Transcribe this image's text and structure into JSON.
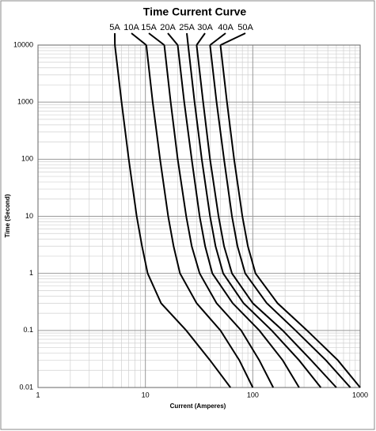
{
  "chart_data": {
    "type": "line",
    "title": "Time Current Curve",
    "xlabel": "Current (Amperes)",
    "ylabel": "Time (Second)",
    "xscale": "log",
    "yscale": "log",
    "grid": true,
    "xlim": [
      1,
      1000
    ],
    "ylim": [
      0.01,
      10000
    ],
    "xticks": [
      1,
      10,
      100,
      1000
    ],
    "yticks": [
      0.01,
      0.1,
      1,
      10,
      100,
      1000,
      10000
    ],
    "series": [
      {
        "name": "5A",
        "color": "#000000",
        "x": [
          5.2,
          6,
          7,
          8.3,
          9.3,
          10.5,
          14,
          24,
          40,
          62
        ],
        "values": [
          10000,
          1000,
          100,
          10,
          3,
          1,
          0.3,
          0.1,
          0.03,
          0.01
        ]
      },
      {
        "name": "10A",
        "color": "#000000",
        "x": [
          10.2,
          11.7,
          13.7,
          16.3,
          18.3,
          21,
          30,
          50,
          75,
          100
        ],
        "values": [
          10000,
          1000,
          100,
          10,
          3,
          1,
          0.3,
          0.1,
          0.03,
          0.01
        ]
      },
      {
        "name": "15A",
        "color": "#000000",
        "x": [
          15,
          17.2,
          20,
          24,
          27,
          32,
          46,
          78,
          115,
          155
        ],
        "values": [
          10000,
          1000,
          100,
          10,
          3,
          1,
          0.3,
          0.1,
          0.03,
          0.01
        ]
      },
      {
        "name": "20A",
        "color": "#000000",
        "x": [
          20,
          23,
          27,
          32,
          36,
          42,
          65,
          115,
          190,
          270
        ],
        "values": [
          10000,
          1000,
          100,
          10,
          3,
          1,
          0.3,
          0.1,
          0.03,
          0.01
        ]
      },
      {
        "name": "25A",
        "color": "#000000",
        "x": [
          25,
          28.7,
          33.5,
          40,
          45,
          53,
          82,
          150,
          270,
          430
        ],
        "values": [
          10000,
          1000,
          100,
          10,
          3,
          1,
          0.3,
          0.1,
          0.03,
          0.01
        ]
      },
      {
        "name": "30A",
        "color": "#000000",
        "x": [
          30,
          34.5,
          40,
          48,
          54,
          64,
          100,
          190,
          350,
          600
        ],
        "values": [
          10000,
          1000,
          100,
          10,
          3,
          1,
          0.3,
          0.1,
          0.03,
          0.01
        ]
      },
      {
        "name": "40A",
        "color": "#000000",
        "x": [
          40,
          46,
          54,
          64,
          72,
          85,
          135,
          250,
          480,
          810
        ],
        "values": [
          10000,
          1000,
          100,
          10,
          3,
          1,
          0.3,
          0.1,
          0.03,
          0.01
        ]
      },
      {
        "name": "50A",
        "color": "#000000",
        "x": [
          50,
          57.5,
          67,
          80,
          90,
          106,
          170,
          320,
          620,
          1000
        ],
        "values": [
          10000,
          1000,
          100,
          10,
          3,
          1,
          0.3,
          0.1,
          0.03,
          0.01
        ]
      }
    ]
  }
}
